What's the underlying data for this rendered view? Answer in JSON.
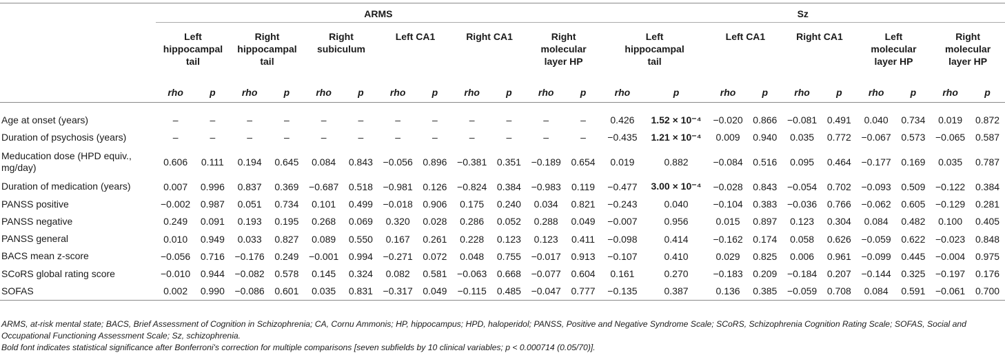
{
  "groups": {
    "arms": "ARMS",
    "sz": "Sz"
  },
  "subfields": [
    {
      "l1": "Left",
      "l2": "hippocampal",
      "l3": "tail"
    },
    {
      "l1": "Right",
      "l2": "hippocampal",
      "l3": "tail"
    },
    {
      "l1": "Right",
      "l2": "subiculum",
      "l3": ""
    },
    {
      "l1": "Left CA1",
      "l2": "",
      "l3": ""
    },
    {
      "l1": "Right CA1",
      "l2": "",
      "l3": ""
    },
    {
      "l1": "Right",
      "l2": "molecular",
      "l3": "layer HP"
    },
    {
      "l1": "Left",
      "l2": "hippocampal",
      "l3": "tail"
    },
    {
      "l1": "Left CA1",
      "l2": "",
      "l3": ""
    },
    {
      "l1": "Right CA1",
      "l2": "",
      "l3": ""
    },
    {
      "l1": "Left",
      "l2": "molecular",
      "l3": "layer HP"
    },
    {
      "l1": "Right",
      "l2": "molecular",
      "l3": "layer HP"
    }
  ],
  "stat_headers": {
    "rho": "rho",
    "p": "p"
  },
  "rows": [
    {
      "label": "Age at onset (years)",
      "cells": [
        "–",
        "–",
        "–",
        "–",
        "–",
        "–",
        "–",
        "–",
        "–",
        "–",
        "–",
        "–",
        "0.426",
        "1.52 × 10⁻⁴",
        "−0.020",
        "0.866",
        "−0.081",
        "0.491",
        "0.040",
        "0.734",
        "0.019",
        "0.872"
      ]
    },
    {
      "label": "Duration of psychosis (years)",
      "cells": [
        "–",
        "–",
        "–",
        "–",
        "–",
        "–",
        "–",
        "–",
        "–",
        "–",
        "–",
        "–",
        "−0.435",
        "1.21 × 10⁻⁴",
        "0.009",
        "0.940",
        "0.035",
        "0.772",
        "−0.067",
        "0.573",
        "−0.065",
        "0.587"
      ]
    },
    {
      "label": "Meducation dose (HPD equiv., mg/day)",
      "cells": [
        "0.606",
        "0.111",
        "0.194",
        "0.645",
        "0.084",
        "0.843",
        "−0.056",
        "0.896",
        "−0.381",
        "0.351",
        "−0.189",
        "0.654",
        "0.019",
        "0.882",
        "−0.084",
        "0.516",
        "0.095",
        "0.464",
        "−0.177",
        "0.169",
        "0.035",
        "0.787"
      ]
    },
    {
      "label": "Duration of medication (years)",
      "cells": [
        "0.007",
        "0.996",
        "0.837",
        "0.369",
        "−0.687",
        "0.518",
        "−0.981",
        "0.126",
        "−0.824",
        "0.384",
        "−0.983",
        "0.119",
        "−0.477",
        "3.00 × 10⁻⁴",
        "−0.028",
        "0.843",
        "−0.054",
        "0.702",
        "−0.093",
        "0.509",
        "−0.122",
        "0.384"
      ]
    },
    {
      "label": "PANSS positive",
      "cells": [
        "−0.002",
        "0.987",
        "0.051",
        "0.734",
        "0.101",
        "0.499",
        "−0.018",
        "0.906",
        "0.175",
        "0.240",
        "0.034",
        "0.821",
        "−0.243",
        "0.040",
        "−0.104",
        "0.383",
        "−0.036",
        "0.766",
        "−0.062",
        "0.605",
        "−0.129",
        "0.281"
      ]
    },
    {
      "label": "PANSS negative",
      "cells": [
        "0.249",
        "0.091",
        "0.193",
        "0.195",
        "0.268",
        "0.069",
        "0.320",
        "0.028",
        "0.286",
        "0.052",
        "0.288",
        "0.049",
        "−0.007",
        "0.956",
        "0.015",
        "0.897",
        "0.123",
        "0.304",
        "0.084",
        "0.482",
        "0.100",
        "0.405"
      ]
    },
    {
      "label": "PANSS general",
      "cells": [
        "0.010",
        "0.949",
        "0.033",
        "0.827",
        "0.089",
        "0.550",
        "0.167",
        "0.261",
        "0.228",
        "0.123",
        "0.123",
        "0.411",
        "−0.098",
        "0.414",
        "−0.162",
        "0.174",
        "0.058",
        "0.626",
        "−0.059",
        "0.622",
        "−0.023",
        "0.848"
      ]
    },
    {
      "label": "BACS mean z-score",
      "cells": [
        "−0.056",
        "0.716",
        "−0.176",
        "0.249",
        "−0.001",
        "0.994",
        "−0.271",
        "0.072",
        "0.048",
        "0.755",
        "−0.017",
        "0.913",
        "−0.107",
        "0.410",
        "0.029",
        "0.825",
        "0.006",
        "0.961",
        "−0.099",
        "0.445",
        "−0.004",
        "0.975"
      ]
    },
    {
      "label": "SCoRS global rating score",
      "cells": [
        "−0.010",
        "0.944",
        "−0.082",
        "0.578",
        "0.145",
        "0.324",
        "0.082",
        "0.581",
        "−0.063",
        "0.668",
        "−0.077",
        "0.604",
        "0.161",
        "0.270",
        "−0.183",
        "0.209",
        "−0.184",
        "0.207",
        "−0.144",
        "0.325",
        "−0.197",
        "0.176"
      ]
    },
    {
      "label": "SOFAS",
      "cells": [
        "0.002",
        "0.990",
        "−0.086",
        "0.601",
        "0.035",
        "0.831",
        "−0.317",
        "0.049",
        "−0.115",
        "0.485",
        "−0.047",
        "0.777",
        "−0.135",
        "0.387",
        "0.136",
        "0.385",
        "−0.059",
        "0.708",
        "0.084",
        "0.591",
        "−0.061",
        "0.700"
      ]
    }
  ],
  "footnotes": {
    "abbrev": "ARMS, at-risk mental state; BACS, Brief Assessment of Cognition in Schizophrenia; CA, Cornu Ammonis; HP, hippocampus; HPD, haloperidol; PANSS, Positive and Negative Syndrome Scale; SCoRS, Schizophrenia Cognition Rating Scale; SOFAS, Social and Occupational Functioning Assessment Scale; Sz, schizophrenia.",
    "bold_note": "Bold font indicates statistical significance after Bonferroni's correction for multiple comparisons [seven subfields by 10 clinical variables; p < 0.000714 (0.05/70)]."
  }
}
